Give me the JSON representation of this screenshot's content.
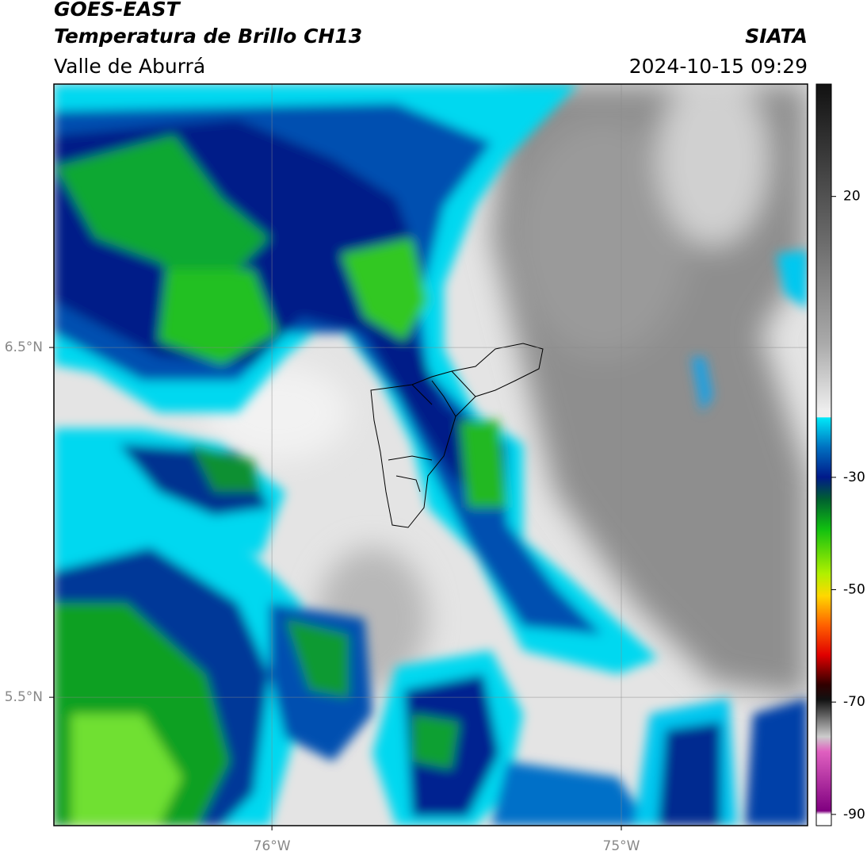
{
  "header": {
    "title": "GOES-EAST",
    "subtitle": "Temperatura de Brillo CH13",
    "region": "Valle de Aburrá",
    "source": "SIATA",
    "datetime": "2024-10-15 09:29"
  },
  "map": {
    "xlim": [
      -76.624,
      -74.467
    ],
    "ylim": [
      5.133,
      7.253
    ],
    "xticks": [
      {
        "value": -76,
        "label": "76°W"
      },
      {
        "value": -75,
        "label": "75°W"
      }
    ],
    "yticks": [
      {
        "value": 6.5,
        "label": "6.5°N"
      },
      {
        "value": 5.5,
        "label": "5.5°N"
      }
    ],
    "grid": true
  },
  "colorbar": {
    "lim": [
      -92,
      40
    ],
    "ticks": [
      20,
      -30,
      -50,
      -70,
      -90
    ]
  }
}
